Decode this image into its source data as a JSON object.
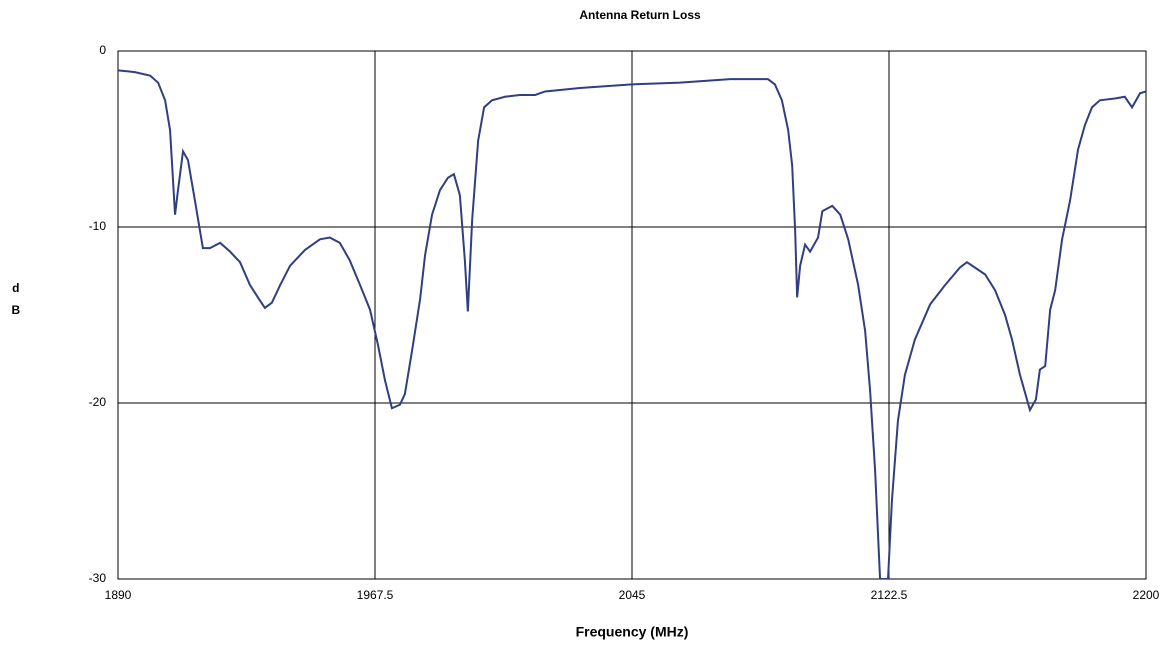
{
  "chart_data": {
    "type": "line",
    "title": "Antenna Return Loss",
    "x_label": "Frequency (MHz)",
    "y_label": "dB",
    "xlim": [
      1890,
      2200
    ],
    "xticks": [
      1890,
      1967.5,
      2045,
      2122.5,
      2200
    ],
    "ylim": [
      -30,
      0
    ],
    "yticks": [
      0,
      -10,
      -20,
      -30
    ],
    "grid": true,
    "series": [
      {
        "color": "#2f3f80",
        "x": [
          1890,
          1895.1,
          1899.7,
          1902.1,
          1904.2,
          1905.7,
          1907.2,
          1908.1,
          1909.6,
          1911.1,
          1913.2,
          1915.6,
          1917.7,
          1920.8,
          1923.8,
          1926.8,
          1929.8,
          1932.2,
          1934.3,
          1936.4,
          1938.9,
          1941.9,
          1946.4,
          1950.9,
          1953.9,
          1956.9,
          1959.9,
          1963.0,
          1966.0,
          1968.4,
          1970.5,
          1972.6,
          1975.0,
          1976.5,
          1978.7,
          1981.1,
          1982.6,
          1984.7,
          1987.1,
          1989.5,
          1991.3,
          1993.1,
          1994.6,
          1995.5,
          1996.8,
          1998.6,
          2000.4,
          2002.8,
          2006.7,
          2011.2,
          2015.8,
          2018.8,
          2029.3,
          2044.4,
          2059.5,
          2074.6,
          2083.6,
          2086.0,
          2088.1,
          2090.2,
          2092.1,
          2093.3,
          2094.2,
          2094.8,
          2095.7,
          2097.2,
          2098.7,
          2101.1,
          2102.4,
          2105.4,
          2107.8,
          2110.2,
          2113.2,
          2115.3,
          2116.8,
          2118.3,
          2119.8,
          2122.2,
          2123.4,
          2125.2,
          2127.3,
          2130.3,
          2134.9,
          2139.4,
          2143.9,
          2146.0,
          2148.4,
          2151.5,
          2154.5,
          2157.5,
          2159.6,
          2162.0,
          2165.0,
          2166.8,
          2168.0,
          2169.6,
          2171.1,
          2172.6,
          2174.7,
          2177.1,
          2179.5,
          2181.6,
          2183.7,
          2186.1,
          2190.6,
          2193.6,
          2195.8,
          2198.2,
          2200
        ],
        "values": [
          -1.1,
          -1.2,
          -1.4,
          -1.8,
          -2.8,
          -4.5,
          -9.3,
          -7.9,
          -5.7,
          -6.2,
          -8.5,
          -11.2,
          -11.2,
          -10.9,
          -11.4,
          -12.0,
          -13.3,
          -14.0,
          -14.6,
          -14.3,
          -13.3,
          -12.2,
          -11.3,
          -10.7,
          -10.6,
          -10.9,
          -11.9,
          -13.3,
          -14.7,
          -16.7,
          -18.7,
          -20.3,
          -20.1,
          -19.5,
          -17.0,
          -14.1,
          -11.6,
          -9.3,
          -7.9,
          -7.2,
          -7.0,
          -8.2,
          -11.9,
          -14.8,
          -9.6,
          -5.1,
          -3.2,
          -2.8,
          -2.6,
          -2.5,
          -2.5,
          -2.3,
          -2.1,
          -1.9,
          -1.8,
          -1.6,
          -1.6,
          -1.6,
          -1.9,
          -2.8,
          -4.5,
          -6.5,
          -10.2,
          -14.0,
          -12.2,
          -11.0,
          -11.4,
          -10.6,
          -9.1,
          -8.8,
          -9.3,
          -10.7,
          -13.3,
          -15.9,
          -19.3,
          -23.8,
          -30,
          -30,
          -25.5,
          -21.0,
          -18.4,
          -16.4,
          -14.4,
          -13.3,
          -12.3,
          -12.0,
          -12.3,
          -12.7,
          -13.6,
          -15.0,
          -16.4,
          -18.4,
          -20.4,
          -19.8,
          -18.1,
          -17.9,
          -14.7,
          -13.6,
          -10.7,
          -8.5,
          -5.6,
          -4.2,
          -3.2,
          -2.8,
          -2.7,
          -2.6,
          -3.2,
          -2.4,
          -2.3
        ]
      }
    ]
  }
}
